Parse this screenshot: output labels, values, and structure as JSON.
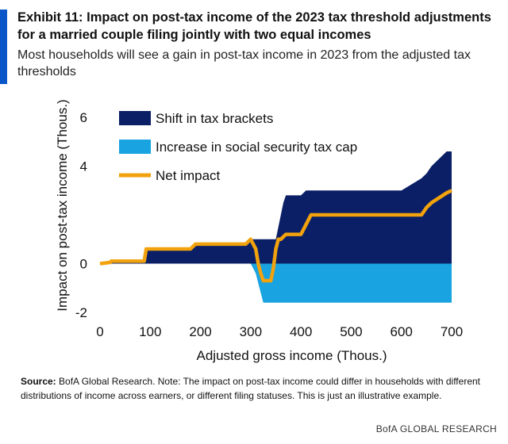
{
  "header": {
    "title": "Exhibit 11: Impact on post-tax income of the 2023 tax threshold adjustments for a married couple filing jointly with two equal incomes",
    "subtitle": "Most households will see a gain in post-tax income in 2023 from the adjusted tax thresholds"
  },
  "colors": {
    "accent": "#0a56c8",
    "shift_in_tax_brackets": "#0b1f66",
    "social_security_tax_cap": "#19a3e1",
    "net_impact": "#f2a20c"
  },
  "chart_data": {
    "type": "area",
    "xlabel": "Adjusted gross income (Thous.)",
    "ylabel": "Impact on post-tax income (Thous.)",
    "xlim": [
      0,
      700
    ],
    "ylim": [
      -2,
      6
    ],
    "xticks": [
      0,
      100,
      200,
      300,
      400,
      500,
      600,
      700
    ],
    "yticks": [
      -2,
      0,
      4,
      6
    ],
    "grid": false,
    "legend_position": "top-left",
    "x": [
      0,
      20,
      22,
      88,
      92,
      100,
      180,
      190,
      200,
      290,
      300,
      310,
      315,
      320,
      325,
      330,
      335,
      340,
      345,
      350,
      355,
      360,
      365,
      370,
      380,
      400,
      410,
      420,
      440,
      450,
      460,
      470,
      500,
      600,
      640,
      650,
      660,
      690,
      700
    ],
    "series": [
      {
        "name": "Shift in tax brackets",
        "type": "area",
        "values": [
          0,
          0.05,
          0.1,
          0.1,
          0.6,
          0.6,
          0.6,
          0.8,
          0.8,
          0.8,
          1.0,
          1.0,
          1.0,
          1.0,
          1.0,
          1.0,
          1.0,
          1.0,
          1.0,
          1.0,
          1.5,
          2.0,
          2.5,
          2.8,
          2.8,
          2.8,
          3.0,
          3.0,
          3.0,
          3.0,
          3.0,
          3.0,
          3.0,
          3.0,
          3.5,
          3.7,
          4.0,
          4.6,
          4.6
        ]
      },
      {
        "name": "Increase in social security tax cap",
        "type": "area",
        "values": [
          0,
          0,
          0,
          0,
          0,
          0,
          0,
          0,
          0,
          0,
          0,
          -0.4,
          -0.8,
          -1.2,
          -1.6,
          -1.6,
          -1.6,
          -1.6,
          -1.6,
          -1.6,
          -1.6,
          -1.6,
          -1.6,
          -1.6,
          -1.6,
          -1.6,
          -1.6,
          -1.6,
          -1.6,
          -1.6,
          -1.6,
          -1.6,
          -1.6,
          -1.6,
          -1.6,
          -1.6,
          -1.6,
          -1.6,
          -1.6
        ]
      },
      {
        "name": "Net impact",
        "type": "line",
        "values": [
          0,
          0.05,
          0.1,
          0.1,
          0.6,
          0.6,
          0.6,
          0.8,
          0.8,
          0.8,
          1.0,
          0.6,
          0.0,
          -0.4,
          -0.7,
          -0.7,
          -0.7,
          -0.7,
          -0.2,
          0.6,
          1.0,
          1.0,
          1.1,
          1.2,
          1.2,
          1.2,
          1.6,
          2.0,
          2.0,
          2.0,
          2.0,
          2.0,
          2.0,
          2.0,
          2.0,
          2.3,
          2.5,
          2.9,
          3.0
        ]
      }
    ]
  },
  "footer": {
    "source_label": "Source:",
    "source_text": "BofA Global Research. Note: The impact on post-tax income could differ in households with different distributions of income across earners, or different filing statuses. This is just an illustrative example.",
    "brand": "BofA GLOBAL RESEARCH"
  }
}
